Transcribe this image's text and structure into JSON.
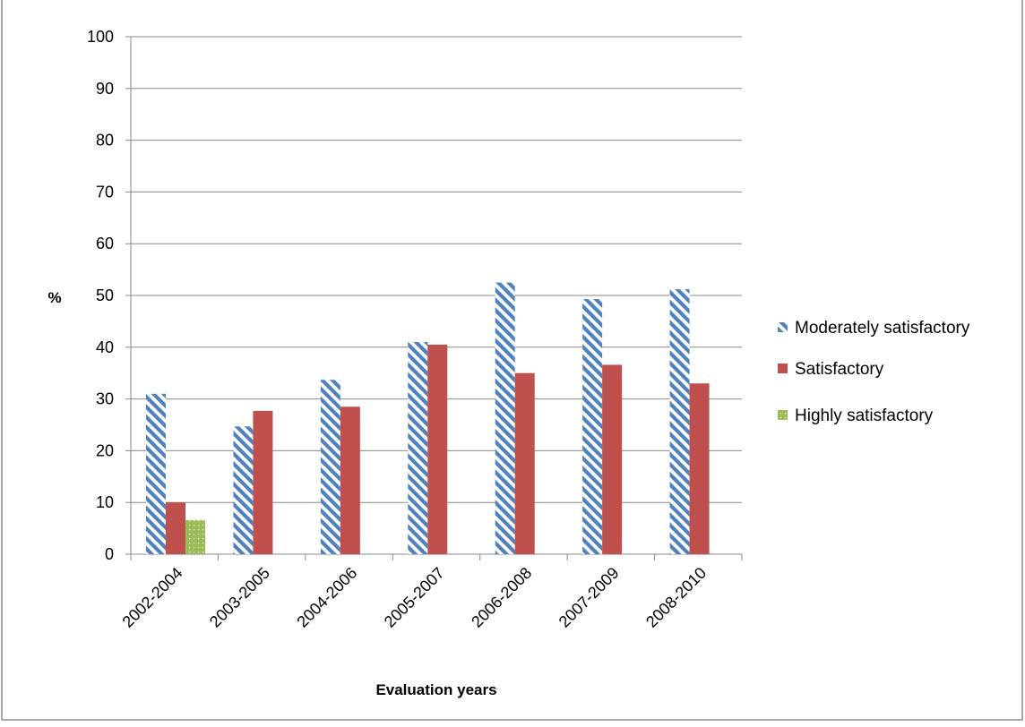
{
  "chart_data": {
    "type": "bar",
    "title": "",
    "xlabel": "Evaluation years",
    "ylabel": "%",
    "ylim": [
      0,
      100
    ],
    "yticks": [
      0,
      10,
      20,
      30,
      40,
      50,
      60,
      70,
      80,
      90,
      100
    ],
    "grid": true,
    "legend_position": "right",
    "categories": [
      "2002-2004",
      "2003-2005",
      "2004-2006",
      "2005-2007",
      "2006-2008",
      "2007-2009",
      "2008-2010"
    ],
    "series": [
      {
        "name": "Moderately satisfactory",
        "color": "#4f81bd",
        "pattern": "diagonal-stripes",
        "values": [
          31,
          24.7,
          33.7,
          41,
          52.5,
          49.3,
          51.2
        ]
      },
      {
        "name": "Satisfactory",
        "color": "#c0504d",
        "pattern": "solid",
        "values": [
          10,
          27.7,
          28.5,
          40.5,
          35,
          36.6,
          33
        ]
      },
      {
        "name": "Highly satisfactory",
        "color": "#9bbb59",
        "pattern": "dots",
        "values": [
          6.6,
          0,
          0,
          0,
          0,
          0,
          0
        ]
      }
    ]
  }
}
